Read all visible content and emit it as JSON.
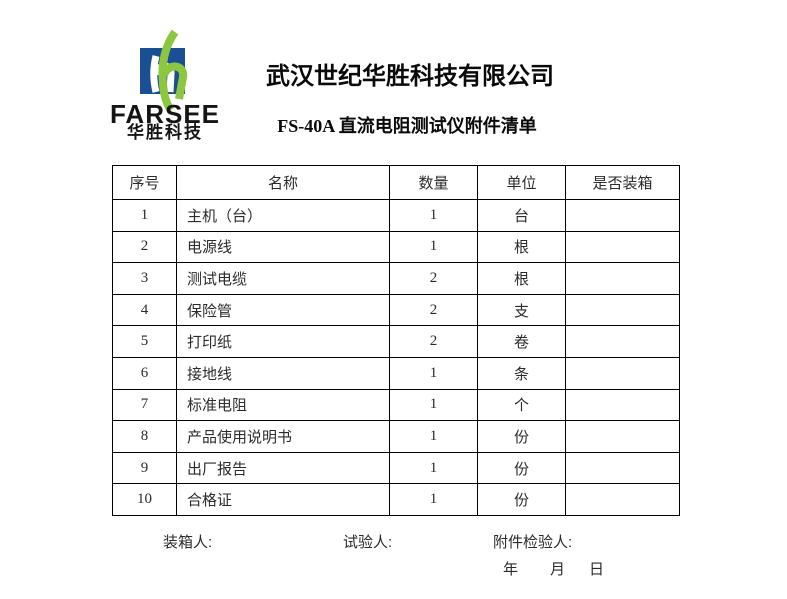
{
  "logo": {
    "brand": "FARSEE",
    "brand_cn": "华胜科技",
    "square_color": "#1b4f94",
    "leaf_color": "#8dc63f"
  },
  "header": {
    "company_name": "武汉世纪华胜科技有限公司",
    "doc_title": "FS-40A 直流电阻测试仪附件清单"
  },
  "table": {
    "columns": [
      "序号",
      "名称",
      "数量",
      "单位",
      "是否装箱"
    ],
    "rows": [
      {
        "no": "1",
        "name": "主机（台）",
        "qty": "1",
        "unit": "台",
        "packed": ""
      },
      {
        "no": "2",
        "name": "电源线",
        "qty": "1",
        "unit": "根",
        "packed": ""
      },
      {
        "no": "3",
        "name": "测试电缆",
        "qty": "2",
        "unit": "根",
        "packed": ""
      },
      {
        "no": "4",
        "name": "保险管",
        "qty": "2",
        "unit": "支",
        "packed": ""
      },
      {
        "no": "5",
        "name": "打印纸",
        "qty": "2",
        "unit": "卷",
        "packed": ""
      },
      {
        "no": "6",
        "name": "接地线",
        "qty": "1",
        "unit": "条",
        "packed": ""
      },
      {
        "no": "7",
        "name": "标准电阻",
        "qty": "1",
        "unit": "个",
        "packed": ""
      },
      {
        "no": "8",
        "name": "产品使用说明书",
        "qty": "1",
        "unit": "份",
        "packed": ""
      },
      {
        "no": "9",
        "name": "出厂报告",
        "qty": "1",
        "unit": "份",
        "packed": ""
      },
      {
        "no": "10",
        "name": "合格证",
        "qty": "1",
        "unit": "份",
        "packed": ""
      }
    ]
  },
  "footer": {
    "packer_label": "装箱人:",
    "tester_label": "试验人:",
    "inspector_label": "附件检验人:",
    "year_label": "年",
    "month_label": "月",
    "day_label": "日"
  }
}
